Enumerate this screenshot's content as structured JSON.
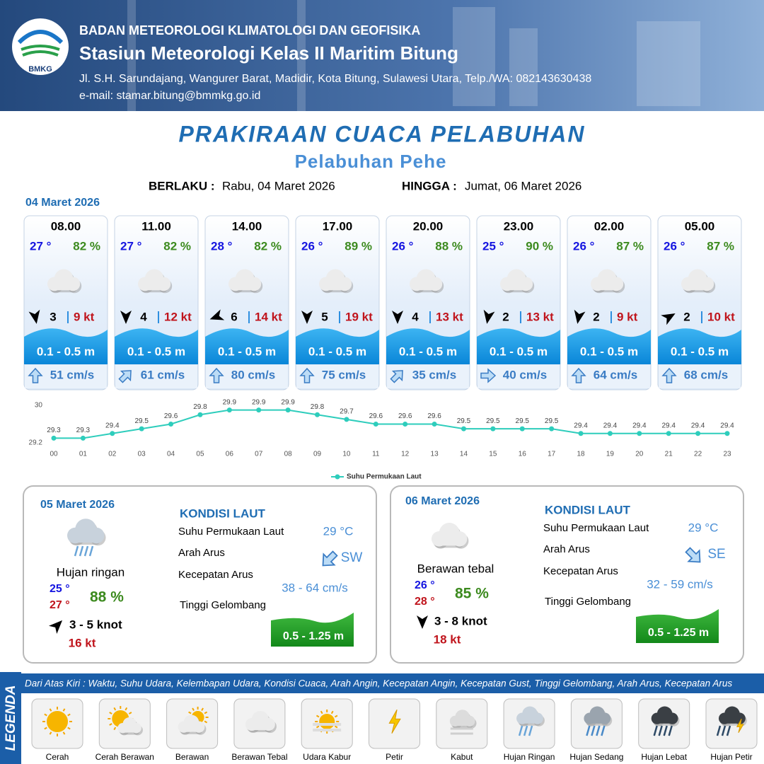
{
  "header": {
    "logo": "BMKG",
    "org": "BADAN METEOROLOGI KLIMATOLOGI DAN GEOFISIKA",
    "station": "Stasiun Meteorologi Kelas II Maritim Bitung",
    "address": "Jl. S.H. Sarundajang, Wangurer Barat, Madidir, Kota Bitung, Sulawesi Utara, Telp./WA: 082143630438",
    "email": "e-mail: stamar.bitung@bmmkg.go.id"
  },
  "title": "PRAKIRAAN CUACA PELABUHAN",
  "subtitle": "Pelabuhan Pehe",
  "validity": {
    "from_label": "BERLAKU :",
    "from": "Rabu, 04 Maret 2026",
    "to_label": "HINGGA :",
    "to": "Jumat, 06 Maret 2026"
  },
  "forecast": {
    "date": "04 Maret 2026",
    "cards": [
      {
        "time": "08.00",
        "temp": "27 °",
        "humidity": "82 %",
        "wind_dir": 170,
        "wind": "3",
        "gust": "9 kt",
        "wave": "0.1 - 0.5 m",
        "current_dir": 0,
        "current": "51 cm/s"
      },
      {
        "time": "11.00",
        "temp": "27 °",
        "humidity": "82 %",
        "wind_dir": 180,
        "wind": "4",
        "gust": "12 kt",
        "wave": "0.1 - 0.5 m",
        "current_dir": 45,
        "current": "61 cm/s"
      },
      {
        "time": "14.00",
        "temp": "28 °",
        "humidity": "82 %",
        "wind_dir": 250,
        "wind": "6",
        "gust": "14 kt",
        "wave": "0.1 - 0.5 m",
        "current_dir": 0,
        "current": "80 cm/s"
      },
      {
        "time": "17.00",
        "temp": "26 °",
        "humidity": "89 %",
        "wind_dir": 180,
        "wind": "5",
        "gust": "19 kt",
        "wave": "0.1 - 0.5 m",
        "current_dir": 0,
        "current": "75 cm/s"
      },
      {
        "time": "20.00",
        "temp": "26 °",
        "humidity": "88 %",
        "wind_dir": 180,
        "wind": "4",
        "gust": "13 kt",
        "wave": "0.1 - 0.5 m",
        "current_dir": 45,
        "current": "35 cm/s"
      },
      {
        "time": "23.00",
        "temp": "25 °",
        "humidity": "90 %",
        "wind_dir": 190,
        "wind": "2",
        "gust": "13 kt",
        "wave": "0.1 - 0.5 m",
        "current_dir": 90,
        "current": "40 cm/s"
      },
      {
        "time": "02.00",
        "temp": "26 °",
        "humidity": "87 %",
        "wind_dir": 190,
        "wind": "2",
        "gust": "9 kt",
        "wave": "0.1 - 0.5 m",
        "current_dir": 0,
        "current": "64 cm/s"
      },
      {
        "time": "05.00",
        "temp": "26 °",
        "humidity": "87 %",
        "wind_dir": 60,
        "wind": "2",
        "gust": "10 kt",
        "wave": "0.1 - 0.5 m",
        "current_dir": 0,
        "current": "68 cm/s"
      }
    ]
  },
  "chart_data": {
    "type": "line",
    "categories": [
      "00",
      "01",
      "02",
      "03",
      "04",
      "05",
      "06",
      "07",
      "08",
      "09",
      "10",
      "11",
      "12",
      "13",
      "14",
      "15",
      "16",
      "17",
      "18",
      "19",
      "20",
      "21",
      "22",
      "23"
    ],
    "series": [
      {
        "name": "Suhu Permukaan Laut",
        "color": "#2ecdbc",
        "values": [
          29.3,
          29.3,
          29.4,
          29.5,
          29.6,
          29.8,
          29.9,
          29.9,
          29.9,
          29.8,
          29.7,
          29.6,
          29.6,
          29.6,
          29.5,
          29.5,
          29.5,
          29.5,
          29.4,
          29.4,
          29.4,
          29.4,
          29.4,
          29.4
        ]
      }
    ],
    "ylim": [
      29.2,
      30
    ],
    "yticks": [
      29.2,
      30
    ]
  },
  "days": [
    {
      "date": "05 Maret 2026",
      "condition": "Hujan ringan",
      "temp_min": "25 °",
      "temp_max": "27 °",
      "humidity": "88 %",
      "wind_dir": 45,
      "wind": "3  - 5 knot",
      "gust": "16 kt",
      "sea_title": "KONDISI LAUT",
      "sst_label": "Suhu Permukaan Laut",
      "sst": "29 °C",
      "current_dir_label": "Arah Arus",
      "current_dir_deg": 225,
      "current_dir": "SW",
      "current_speed_label": "Kecepatan Arus",
      "current_speed": "38 - 64 cm/s",
      "wave_label": "Tinggi Gelombang",
      "wave": "0.5 - 1.25 m"
    },
    {
      "date": "06 Maret 2026",
      "condition": "Berawan tebal",
      "temp_min": "26 °",
      "temp_max": "28 °",
      "humidity": "85 %",
      "wind_dir": 180,
      "wind": "3  - 8 knot",
      "gust": "18 kt",
      "sea_title": "KONDISI LAUT",
      "sst_label": "Suhu Permukaan Laut",
      "sst": "29 °C",
      "current_dir_label": "Arah Arus",
      "current_dir_deg": 135,
      "current_dir": "SE",
      "current_speed_label": "Kecepatan Arus",
      "current_speed": "32 - 59 cm/s",
      "wave_label": "Tinggi Gelombang",
      "wave": "0.5 - 1.25 m"
    }
  ],
  "legend": {
    "title": "LEGENDA",
    "description": "Dari Atas Kiri : Waktu, Suhu Udara, Kelembapan Udara, Kondisi Cuaca, Arah Angin, Kecepatan Angin, Kecepatan Gust, Tinggi Gelombang, Arah Arus, Kecepatan Arus",
    "items": [
      "Cerah",
      "Cerah Berawan",
      "Berawan",
      "Berawan Tebal",
      "Udara Kabur",
      "Petir",
      "Kabut",
      "Hujan Ringan",
      "Hujan Sedang",
      "Hujan Lebat",
      "Hujan Petir"
    ]
  }
}
